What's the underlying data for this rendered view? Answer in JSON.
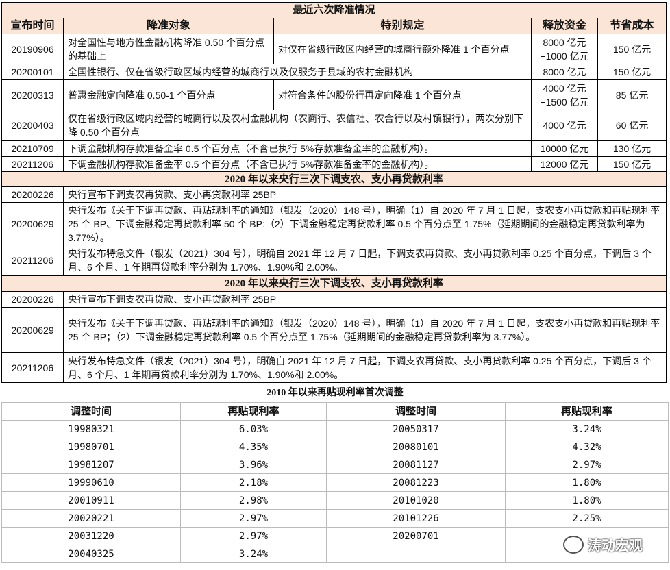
{
  "rrr": {
    "title": "最近六次降准情况",
    "headers": [
      "宣布时间",
      "降准对象",
      "特别规定",
      "释放资金",
      "节省成本"
    ],
    "rows": [
      {
        "date": "20190906",
        "target": "对全国性与地方性金融机构降准 0.50 个百分点的基础上",
        "special": "对仅在省级行政区内经营的城商行额外降准 1 个百分点",
        "funds": "8000 亿元 +1000 亿元",
        "cost": "150 亿元"
      },
      {
        "date": "20200101",
        "target": "全国性银行、仅在省级行政区域内经营的城商行以及仅服务于县域的农村金融机构",
        "funds": "8000 亿元",
        "cost": "150 亿元"
      },
      {
        "date": "20200313",
        "target": "普惠金融定向降准 0.50-1 个百分点",
        "special": "对符合条件的股份行再定向降准 1 个百分点",
        "funds": "4000 亿元 +1500 亿元",
        "cost": "85 亿元"
      },
      {
        "date": "20200403",
        "target": "仅在省级行政区域内经营的城商行以及农村金融机构（农商行、农信社、农合行以及村镇银行），两次分别下降 0.50 个百分点",
        "funds": "4000 亿元",
        "cost": "60 亿元"
      },
      {
        "date": "20210709",
        "target": "下调金融机构存款准备金率 0.5 个百分点（不含已执行 5%存款准备金率的金融机构）。",
        "funds": "10000 亿元",
        "cost": "130 亿元"
      },
      {
        "date": "20211206",
        "target": "下调金融机构存款准备金率 0.5 个百分点（不含已执行 5%存款准备金率的金融机构）。",
        "funds": "12000 亿元",
        "cost": "150 亿元"
      }
    ]
  },
  "relend1": {
    "title": "2020 年以来央行三次下调支农、支小再贷款利率",
    "rows": [
      {
        "date": "20200226",
        "text": "央行宣布下调支农再贷款、支小再贷款利率 25BP"
      },
      {
        "date": "20200629",
        "text": "央行发布《关于下调再贷款、再贴现利率的通知》（银发（2020）148 号），明确（1）自 2020 年 7 月 1 日起，支农支小再贷款和再贴现利率 25 个 BP、下调金融稳定再贷款利率 50 个 BP:（2）下调金融稳定再贷款利率 0.5 个百分点至 1.75%（延期期间的金融稳定再贷款利率为 3.77%）。"
      },
      {
        "date": "20211206",
        "text": "央行发布特急文件（银发（2021）304 号），明确自 2021 年 12 月 7 日起，下调支农再贷款、支小再贷款利率 0.25 个百分点，下调后 3 个月、6 个月、1 年期再贷款利率分别为 1.70%、1.90%和 2.00%。"
      }
    ]
  },
  "relend2": {
    "title": "2020 年以来央行三次下调支农、支小再贷款利率",
    "rows": [
      {
        "date": "20200226",
        "text": "央行宣布下调支农再贷款、支小再贷款利率 25BP"
      },
      {
        "date": "20200629",
        "text": "央行发布《关于下调再贷款、再贴现利率的通知》（银发（2020）148 号），明确（1）自 2020 年 7 月 1 日起，支农支小再贷款和再贴现利率 25 个 BP；（2）下调金融稳定再贷款利率 0.5 个百分点至 1.75%（延期期间的金融稳定再贷款利率为 3.77%）。"
      },
      {
        "date": "20211206",
        "text": "央行发布特急文件（银发（2021）304 号），明确自 2021 年 12 月 7 日起，下调支农再贷款、支小再贷款利率 0.25 个百分点，下调后 3 个月、6 个月、1 年期再贷款利率分别为 1.70%、1.90%和 2.00%。"
      }
    ]
  },
  "rediscount": {
    "title": "2010 年以来再贴现利率首次调整",
    "headers": [
      "调整时间",
      "再贴现利率",
      "调整时间",
      "再贴现利率"
    ],
    "rows": [
      [
        "19980321",
        "6.03%",
        "20050317",
        "3.24%"
      ],
      [
        "19980701",
        "4.35%",
        "20080101",
        "4.32%"
      ],
      [
        "19981207",
        "3.96%",
        "20081127",
        "2.97%"
      ],
      [
        "19990610",
        "2.18%",
        "20081223",
        "1.80%"
      ],
      [
        "20010911",
        "2.98%",
        "20101020",
        "1.80%"
      ],
      [
        "20020221",
        "2.97%",
        "20101226",
        "2.25%"
      ],
      [
        "20031220",
        "2.97%",
        "20200701",
        ""
      ],
      [
        "20040325",
        "3.24%",
        "",
        ""
      ]
    ]
  },
  "watermark": "涛动宏观"
}
